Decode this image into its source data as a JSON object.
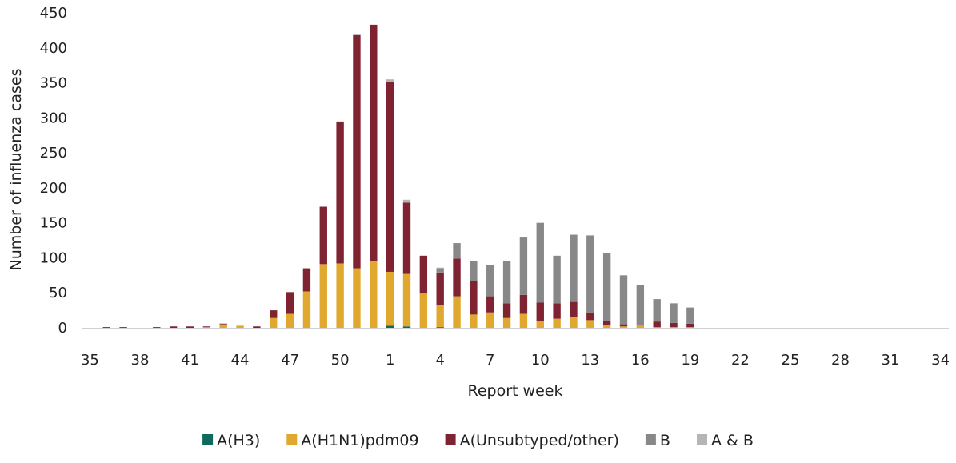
{
  "chart_data": {
    "type": "bar",
    "stacked": true,
    "xlabel": "Report week",
    "ylabel": "Number of influenza cases",
    "ylim": [
      0,
      450
    ],
    "yticks": [
      "0",
      "50",
      "100",
      "150",
      "200",
      "250",
      "300",
      "350",
      "400",
      "450"
    ],
    "xtick_labels": [
      "35",
      "38",
      "41",
      "44",
      "47",
      "50",
      "1",
      "4",
      "7",
      "10",
      "13",
      "16",
      "19",
      "22",
      "25",
      "28",
      "31",
      "34"
    ],
    "grid": false,
    "legend_position": "bottom",
    "categories": [
      "35",
      "36",
      "37",
      "38",
      "39",
      "40",
      "41",
      "42",
      "43",
      "44",
      "45",
      "46",
      "47",
      "48",
      "49",
      "50",
      "51",
      "52",
      "1",
      "2",
      "3",
      "4",
      "5",
      "6",
      "7",
      "8",
      "9",
      "10",
      "11",
      "12",
      "13",
      "14",
      "15",
      "16",
      "17",
      "18",
      "19",
      "20",
      "21",
      "22",
      "23",
      "24",
      "25",
      "26",
      "27",
      "28",
      "29",
      "30",
      "31",
      "32",
      "33",
      "34"
    ],
    "series": [
      {
        "name": "A(H3)",
        "color": "#0e6b5c",
        "values": [
          0,
          0,
          0,
          0,
          0,
          0,
          0,
          0,
          0,
          0,
          0,
          0,
          0,
          0,
          0,
          0,
          0,
          0,
          3,
          2,
          0,
          1,
          0,
          0,
          0,
          0,
          0,
          0,
          0,
          0,
          0,
          0,
          0,
          0,
          0,
          0,
          0,
          0,
          0,
          0,
          0,
          0,
          0,
          0,
          0,
          0,
          0,
          0,
          0,
          0,
          0,
          0
        ]
      },
      {
        "name": "A(H1N1)pdm09",
        "color": "#e0a82e",
        "values": [
          0,
          0,
          0,
          0,
          0,
          0,
          0,
          1,
          5,
          3,
          0,
          14,
          20,
          52,
          91,
          92,
          85,
          95,
          77,
          75,
          49,
          32,
          45,
          19,
          22,
          14,
          20,
          10,
          13,
          15,
          11,
          4,
          2,
          3,
          1,
          1,
          1,
          0,
          0,
          0,
          0,
          0,
          0,
          0,
          0,
          0,
          0,
          0,
          0,
          0,
          0,
          0
        ]
      },
      {
        "name": "A(Unsubtyped/other)",
        "color": "#7f2232",
        "values": [
          0,
          1,
          1,
          0,
          1,
          2,
          2,
          1,
          1,
          0,
          2,
          11,
          31,
          33,
          82,
          202,
          333,
          338,
          272,
          102,
          54,
          46,
          54,
          48,
          23,
          21,
          27,
          26,
          22,
          22,
          11,
          6,
          3,
          0,
          8,
          6,
          5,
          0,
          0,
          0,
          0,
          0,
          0,
          0,
          0,
          0,
          0,
          0,
          0,
          0,
          0,
          0
        ]
      },
      {
        "name": "B",
        "color": "#888888",
        "values": [
          0,
          0,
          0,
          0,
          0,
          0,
          0,
          0,
          0,
          0,
          0,
          0,
          0,
          0,
          0,
          0,
          0,
          0,
          0,
          0,
          0,
          6,
          22,
          28,
          45,
          60,
          82,
          114,
          68,
          96,
          110,
          97,
          70,
          58,
          32,
          28,
          23,
          0,
          0,
          0,
          0,
          0,
          0,
          0,
          0,
          0,
          0,
          0,
          0,
          0,
          0,
          0
        ]
      },
      {
        "name": "A & B",
        "color": "#b5b5b5",
        "values": [
          0,
          0,
          0,
          0,
          0,
          0,
          0,
          0,
          0,
          0,
          0,
          0,
          0,
          0,
          0,
          1,
          1,
          0,
          3,
          4,
          0,
          1,
          0,
          0,
          0,
          0,
          0,
          0,
          0,
          0,
          0,
          0,
          0,
          0,
          0,
          0,
          0,
          0,
          0,
          0,
          0,
          0,
          0,
          0,
          0,
          0,
          0,
          0,
          0,
          0,
          0,
          0
        ]
      }
    ]
  }
}
